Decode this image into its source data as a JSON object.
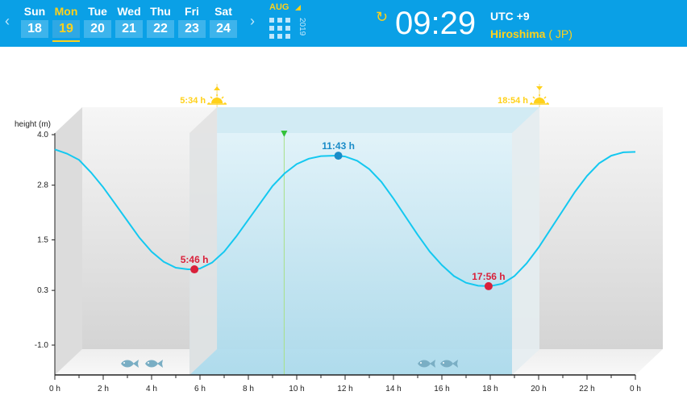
{
  "calendar": {
    "prev_label": "‹",
    "next_label": "›",
    "days": [
      {
        "name": "Sun",
        "num": "18",
        "active": false
      },
      {
        "name": "Mon",
        "num": "19",
        "active": true
      },
      {
        "name": "Tue",
        "num": "20",
        "active": false
      },
      {
        "name": "Wed",
        "num": "21",
        "active": false
      },
      {
        "name": "Thu",
        "num": "22",
        "active": false
      },
      {
        "name": "Fri",
        "num": "23",
        "active": false
      },
      {
        "name": "Sat",
        "num": "24",
        "active": false
      }
    ],
    "month": "AUG",
    "year": "2019"
  },
  "header": {
    "refresh_icon": "refresh-icon",
    "time": "09:29",
    "utc_prefix": "UTC",
    "utc_offset": "+9",
    "city": "Hiroshima",
    "country": "( JP)"
  },
  "colors": {
    "topbar": "#0aa0e6",
    "accent": "#ffd11a",
    "curve": "#14c8f0",
    "high": "#1a8cc8",
    "low": "#d9203a",
    "daylight": "#bfe4f2"
  },
  "chart_data": {
    "type": "line",
    "ylabel": "height (m)",
    "yticks": [
      "4.0",
      "2.8",
      "1.5",
      "0.3",
      "-1.0"
    ],
    "xticks": [
      "0 h",
      "2 h",
      "4 h",
      "6 h",
      "8 h",
      "10 h",
      "12 h",
      "14 h",
      "16 h",
      "18 h",
      "20 h",
      "22 h",
      "0 h"
    ],
    "xlim": [
      0,
      24
    ],
    "ylim": [
      -1.0,
      4.0
    ],
    "sunrise": {
      "hour": 5.57,
      "label": "5:34 h"
    },
    "sunset": {
      "hour": 18.9,
      "label": "18:54 h"
    },
    "now_hour": 9.48,
    "extremes": [
      {
        "type": "low",
        "hour": 5.77,
        "height": 0.8,
        "label": "5:46 h"
      },
      {
        "type": "high",
        "hour": 11.72,
        "height": 3.5,
        "label": "11:43 h"
      },
      {
        "type": "low",
        "hour": 17.93,
        "height": 0.4,
        "label": "17:56 h"
      }
    ],
    "series": [
      {
        "x": [
          0,
          0.5,
          1,
          1.5,
          2,
          2.5,
          3,
          3.5,
          4,
          4.5,
          5,
          5.5,
          5.77,
          6,
          6.5,
          7,
          7.5,
          8,
          8.5,
          9,
          9.5,
          10,
          10.5,
          11,
          11.5,
          11.72,
          12,
          12.5,
          13,
          13.5,
          14,
          14.5,
          15,
          15.5,
          16,
          16.5,
          17,
          17.5,
          17.93,
          18,
          18.5,
          19,
          19.5,
          20,
          20.5,
          21,
          21.5,
          22,
          22.5,
          23,
          23.5,
          24
        ],
        "y": [
          3.65,
          3.55,
          3.4,
          3.1,
          2.75,
          2.35,
          1.95,
          1.55,
          1.22,
          0.98,
          0.84,
          0.8,
          0.8,
          0.82,
          0.96,
          1.22,
          1.58,
          1.98,
          2.38,
          2.78,
          3.08,
          3.3,
          3.43,
          3.49,
          3.5,
          3.5,
          3.48,
          3.38,
          3.18,
          2.88,
          2.48,
          2.05,
          1.62,
          1.22,
          0.9,
          0.64,
          0.48,
          0.41,
          0.4,
          0.4,
          0.46,
          0.64,
          0.94,
          1.32,
          1.76,
          2.2,
          2.64,
          3.02,
          3.32,
          3.5,
          3.58,
          3.59
        ]
      }
    ],
    "fish_icon": "fish-icon",
    "sunrise_icon": "sunrise-icon",
    "sunset_icon": "sunset-icon"
  }
}
